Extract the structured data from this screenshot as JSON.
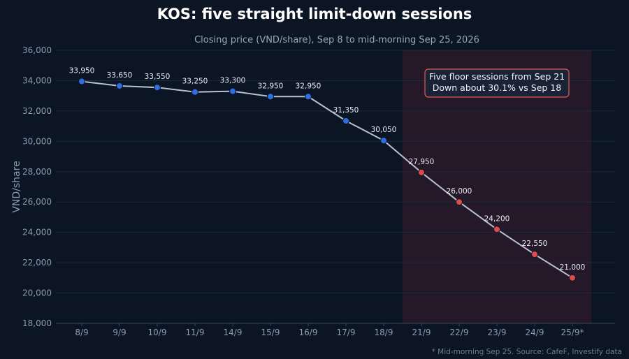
{
  "header": {
    "title": "KOS: five straight limit-down sessions",
    "subtitle": "Closing price (VND/share), Sep 8 to mid-morning Sep 25, 2026"
  },
  "footnote": "* Mid-morning Sep 25. Source: CafeF, Investify data",
  "annotation": {
    "line1": "Five floor sessions from Sep 21",
    "line2": "Down about 30.1% vs Sep 18"
  },
  "colors": {
    "background": "#0c1524",
    "normal_point": "#2f6ee0",
    "limit_down_point": "#e04a4a",
    "line": "#b8c2d4",
    "highlight_band": "#2a1a2a",
    "annotation_border": "#e05a5a"
  },
  "chart_data": {
    "type": "line",
    "title": "KOS: five straight limit-down sessions",
    "subtitle": "Closing price (VND/share), Sep 8 to mid-morning Sep 25, 2026",
    "xlabel": "",
    "ylabel": "VND/share",
    "ylim": [
      18000,
      36000
    ],
    "yticks": [
      18000,
      20000,
      22000,
      24000,
      26000,
      28000,
      30000,
      32000,
      34000,
      36000
    ],
    "ytick_labels": [
      "18,000",
      "20,000",
      "22,000",
      "24,000",
      "26,000",
      "28,000",
      "30,000",
      "32,000",
      "34,000",
      "36,000"
    ],
    "grid": true,
    "categories": [
      "8/9",
      "9/9",
      "10/9",
      "11/9",
      "14/9",
      "15/9",
      "16/9",
      "17/9",
      "18/9",
      "21/9",
      "22/9",
      "23/9",
      "24/9",
      "25/9*"
    ],
    "values": [
      33950,
      33650,
      33550,
      33250,
      33300,
      32950,
      32950,
      31350,
      30050,
      27950,
      26000,
      24200,
      22550,
      21000
    ],
    "value_labels": [
      "33,950",
      "33,650",
      "33,550",
      "33,250",
      "33,300",
      "32,950",
      "32,950",
      "31,350",
      "30,050",
      "27,950",
      "26,000",
      "24,200",
      "22,550",
      "21,000"
    ],
    "limit_down": [
      false,
      false,
      false,
      false,
      false,
      false,
      false,
      false,
      false,
      true,
      true,
      true,
      true,
      true
    ],
    "highlight_range": [
      "21/9",
      "25/9*"
    ]
  }
}
